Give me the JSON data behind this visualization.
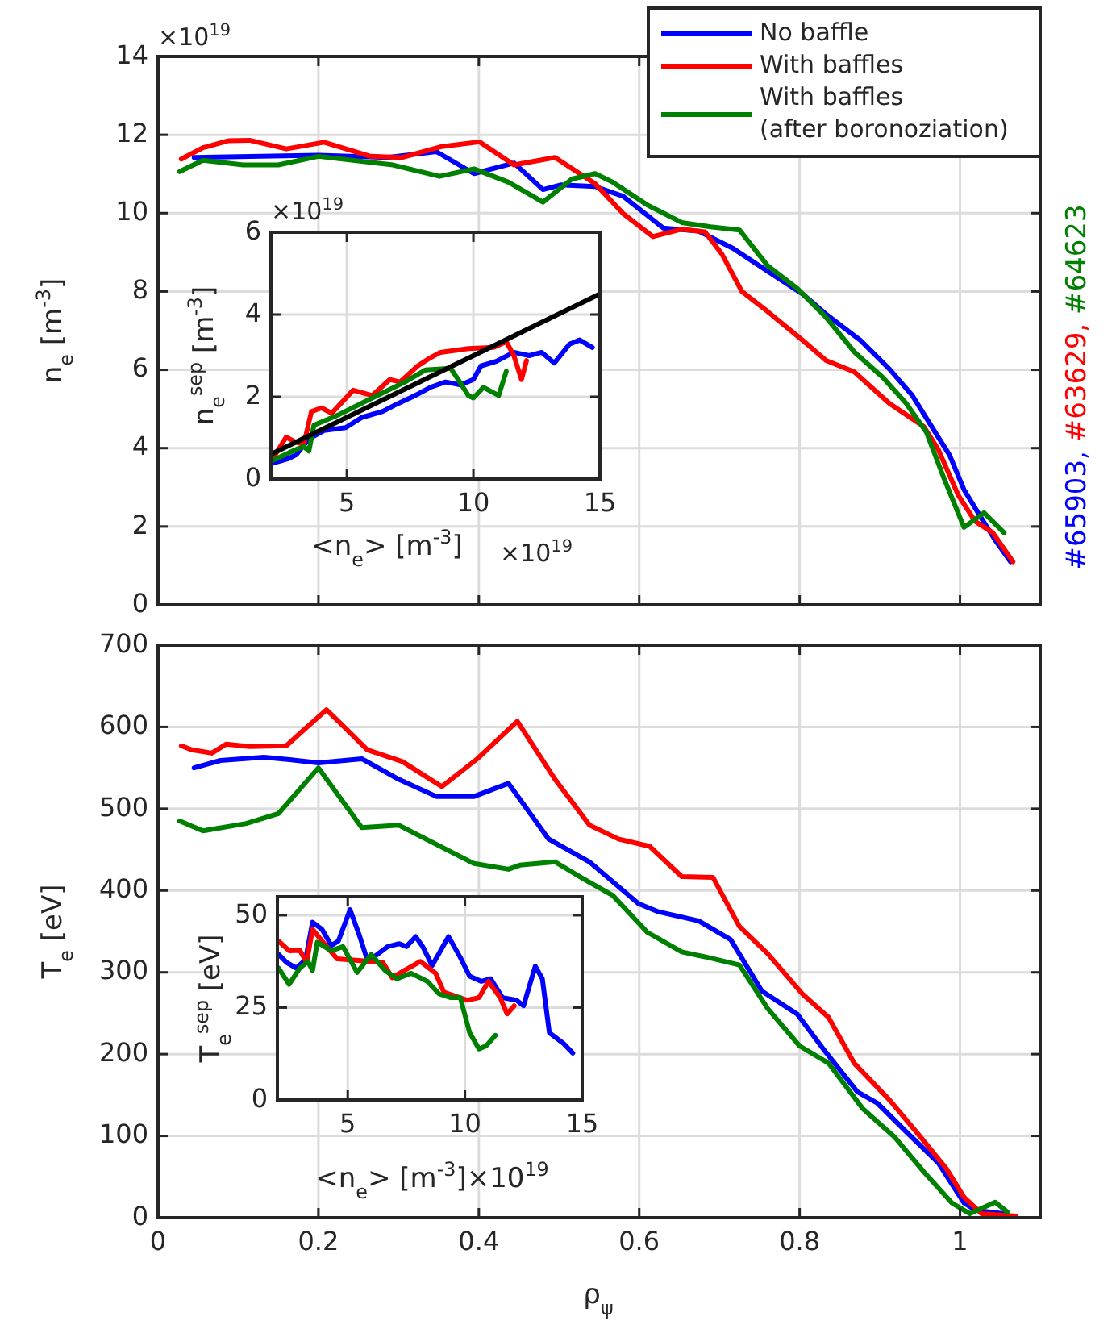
{
  "chart_data": [
    {
      "type": "line",
      "ylabel": "n$_{e}$ [m$^{-3}$]",
      "xlim": [
        0,
        1.1
      ],
      "ylim": [
        0,
        14
      ],
      "xticks": [
        0,
        0.2,
        0.4,
        0.6,
        0.8,
        1
      ],
      "yticks": [
        0,
        2,
        4,
        6,
        8,
        10,
        12,
        14
      ],
      "tick_labels": "y",
      "grid": true,
      "legend": "top right",
      "annotations": [
        "×10$^{19}$",
        "#65903,",
        "#63629,",
        "#64623"
      ],
      "series": [
        {
          "name": "No baffle",
          "color": "#0000ff",
          "x": [
            0.045,
            0.2,
            0.286,
            0.347,
            0.394,
            0.444,
            0.48,
            0.502,
            0.545,
            0.58,
            0.63,
            0.674,
            0.717,
            0.76,
            0.804,
            0.833,
            0.876,
            0.912,
            0.94,
            0.969,
            0.987,
            1.005,
            1.027,
            1.045,
            1.063
          ],
          "values": [
            11.42,
            11.48,
            11.42,
            11.57,
            11.01,
            11.28,
            10.6,
            10.72,
            10.68,
            10.43,
            9.62,
            9.54,
            9.1,
            8.52,
            7.93,
            7.42,
            6.75,
            6.02,
            5.36,
            4.41,
            3.82,
            2.94,
            2.2,
            1.62,
            1.1
          ]
        },
        {
          "name": "With baffles",
          "color": "#ff0000",
          "x": [
            0.029,
            0.056,
            0.088,
            0.114,
            0.16,
            0.207,
            0.265,
            0.304,
            0.354,
            0.401,
            0.444,
            0.495,
            0.545,
            0.58,
            0.617,
            0.653,
            0.682,
            0.703,
            0.728,
            0.76,
            0.804,
            0.833,
            0.868,
            0.912,
            0.955,
            0.973,
            0.998,
            1.019,
            1.041,
            1.066
          ],
          "values": [
            11.38,
            11.67,
            11.85,
            11.86,
            11.64,
            11.81,
            11.45,
            11.42,
            11.7,
            11.82,
            11.23,
            11.42,
            10.75,
            9.99,
            9.4,
            9.59,
            9.52,
            8.96,
            8.0,
            7.49,
            6.75,
            6.24,
            5.95,
            5.14,
            4.55,
            3.96,
            2.79,
            2.13,
            1.84,
            1.1
          ]
        },
        {
          "name": "With baffles\n(after boronoziation)",
          "color": "#008000",
          "x": [
            0.027,
            0.056,
            0.106,
            0.15,
            0.2,
            0.293,
            0.351,
            0.394,
            0.437,
            0.48,
            0.516,
            0.545,
            0.567,
            0.61,
            0.631,
            0.653,
            0.689,
            0.725,
            0.76,
            0.797,
            0.833,
            0.868,
            0.904,
            0.933,
            0.958,
            0.98,
            1.005,
            1.03,
            1.055
          ],
          "values": [
            11.06,
            11.35,
            11.23,
            11.23,
            11.45,
            11.23,
            10.94,
            11.13,
            10.79,
            10.28,
            10.87,
            11.01,
            10.79,
            10.21,
            9.99,
            9.76,
            9.65,
            9.57,
            8.66,
            8.08,
            7.34,
            6.46,
            5.8,
            5.14,
            4.41,
            3.23,
            1.98,
            2.35,
            1.84
          ]
        }
      ]
    },
    {
      "type": "line",
      "xlabel": "<n$_{e}$> [m$^{-3}$]",
      "ylabel": "n$_{e}$$^{sep}$ [m$^{-3}$]",
      "xlim": [
        2,
        15
      ],
      "ylim": [
        0,
        6
      ],
      "xticks": [
        5,
        10,
        15
      ],
      "yticks": [
        0,
        2,
        4,
        6
      ],
      "grid": true,
      "annotations": [
        "×10$^{19}$",
        "×10$^{19}$"
      ],
      "series": [
        {
          "color": "#0000ff",
          "x": [
            2.1,
            2.7,
            3.0,
            3.5,
            4.1,
            4.95,
            5.6,
            6.4,
            7.0,
            7.7,
            8.3,
            8.9,
            9.5,
            10.0,
            10.3,
            10.9,
            11.6,
            12.2,
            12.7,
            13.2,
            13.8,
            14.2,
            14.7
          ],
          "values": [
            0.39,
            0.5,
            0.59,
            0.98,
            1.18,
            1.25,
            1.5,
            1.64,
            1.83,
            2.03,
            2.23,
            2.36,
            2.29,
            2.42,
            2.75,
            2.86,
            3.08,
            3.0,
            3.08,
            2.82,
            3.28,
            3.38,
            3.2
          ]
        },
        {
          "color": "#ff0000",
          "x": [
            2.1,
            2.6,
            3.0,
            3.3,
            3.6,
            4.0,
            4.4,
            5.25,
            6.0,
            6.7,
            7.1,
            7.8,
            8.3,
            8.7,
            9.8,
            10.8,
            11.3,
            11.6,
            11.9,
            12.1
          ],
          "values": [
            0.52,
            1.02,
            0.89,
            0.85,
            1.64,
            1.73,
            1.6,
            2.16,
            2.03,
            2.42,
            2.36,
            2.75,
            2.95,
            3.08,
            3.17,
            3.2,
            3.34,
            3.0,
            2.42,
            2.88
          ]
        },
        {
          "color": "#008000",
          "x": [
            2.1,
            3.0,
            3.3,
            3.5,
            3.7,
            4.7,
            6.0,
            7.3,
            8.1,
            9.1,
            9.4,
            9.8,
            10.0,
            10.4,
            11.0,
            11.3
          ],
          "values": [
            0.46,
            0.72,
            0.79,
            0.68,
            1.31,
            1.57,
            1.97,
            2.36,
            2.65,
            2.69,
            2.42,
            2.03,
            1.97,
            2.23,
            2.03,
            2.62
          ]
        },
        {
          "type": "line",
          "color": "#000000",
          "x": [
            2,
            15
          ],
          "values": [
            0.6,
            4.5
          ]
        }
      ]
    },
    {
      "type": "line",
      "xlabel": "ρ$_{ψ}$",
      "ylabel": "T$_{e}$ [eV]",
      "xlim": [
        0,
        1.1
      ],
      "ylim": [
        0,
        700
      ],
      "xticks": [
        0,
        0.2,
        0.4,
        0.6,
        0.8,
        1
      ],
      "yticks": [
        0,
        100,
        200,
        300,
        400,
        500,
        600,
        700
      ],
      "grid": true,
      "series": [
        {
          "color": "#0000ff",
          "x": [
            0.045,
            0.078,
            0.132,
            0.164,
            0.2,
            0.254,
            0.3,
            0.347,
            0.394,
            0.437,
            0.487,
            0.538,
            0.599,
            0.624,
            0.674,
            0.714,
            0.753,
            0.797,
            0.829,
            0.872,
            0.897,
            0.933,
            0.973,
            1.005,
            1.02,
            1.055
          ],
          "values": [
            550,
            559,
            563,
            560,
            556,
            561,
            536,
            515,
            515,
            531,
            463,
            435,
            384,
            374,
            363,
            340,
            277,
            249,
            207,
            154,
            140,
            105,
            67,
            18,
            9,
            5
          ]
        },
        {
          "color": "#ff0000",
          "x": [
            0.029,
            0.042,
            0.067,
            0.085,
            0.114,
            0.16,
            0.178,
            0.21,
            0.229,
            0.261,
            0.304,
            0.354,
            0.398,
            0.448,
            0.495,
            0.538,
            0.574,
            0.613,
            0.653,
            0.692,
            0.725,
            0.76,
            0.804,
            0.836,
            0.868,
            0.912,
            0.948,
            0.983,
            1.005,
            1.027,
            1.07
          ],
          "values": [
            577,
            572,
            568,
            579,
            576,
            577,
            593,
            621,
            603,
            572,
            558,
            527,
            561,
            607,
            536,
            480,
            463,
            454,
            417,
            416,
            356,
            323,
            273,
            245,
            189,
            144,
            102,
            60,
            25,
            5,
            2
          ]
        },
        {
          "color": "#008000",
          "x": [
            0.027,
            0.056,
            0.11,
            0.15,
            0.2,
            0.254,
            0.3,
            0.394,
            0.437,
            0.451,
            0.495,
            0.531,
            0.567,
            0.61,
            0.653,
            0.682,
            0.725,
            0.76,
            0.8,
            0.836,
            0.879,
            0.919,
            0.955,
            0.99,
            1.012,
            1.044,
            1.059
          ],
          "values": [
            485,
            473,
            482,
            494,
            550,
            477,
            480,
            433,
            426,
            431,
            435,
            414,
            394,
            349,
            325,
            319,
            309,
            256,
            210,
            189,
            133,
            98,
            56,
            18,
            5,
            19,
            7
          ]
        }
      ]
    },
    {
      "type": "line",
      "xlabel": "<n$_{e}$> [m$^{-3}$]×10$^{19}$",
      "ylabel": "T$_{e}$$^{sep}$ [eV]",
      "xlim": [
        2,
        15
      ],
      "ylim": [
        0,
        55
      ],
      "xticks": [
        5,
        10,
        15
      ],
      "yticks": [
        0,
        25,
        50
      ],
      "grid": true,
      "series": [
        {
          "color": "#0000ff",
          "x": [
            2.05,
            2.4,
            2.8,
            3.2,
            3.5,
            3.9,
            4.3,
            4.6,
            5.1,
            5.5,
            5.8,
            6.1,
            6.7,
            7.2,
            7.5,
            7.9,
            8.2,
            8.6,
            9.3,
            9.8,
            10.2,
            10.7,
            11.1,
            11.6,
            12.2,
            12.5,
            13.0,
            13.3,
            13.6,
            14.2,
            14.6
          ],
          "values": [
            39.4,
            37.2,
            35.7,
            37.9,
            48.1,
            46.2,
            41.8,
            43.0,
            51.5,
            44.5,
            38.6,
            38.6,
            41.5,
            42.3,
            41.5,
            44.2,
            41.5,
            36.4,
            44.2,
            38.6,
            33.5,
            32.1,
            32.8,
            27.7,
            27.0,
            25.5,
            36.2,
            32.8,
            18.2,
            15.3,
            12.7
          ]
        },
        {
          "color": "#ff0000",
          "x": [
            2.05,
            2.5,
            2.96,
            3.25,
            3.5,
            4.0,
            4.55,
            6.0,
            6.5,
            6.9,
            7.4,
            8.1,
            8.75,
            9.1,
            10.1,
            10.6,
            11.0,
            11.5,
            11.8,
            12.1
          ],
          "values": [
            43.0,
            40.4,
            40.5,
            37.2,
            46.2,
            42.3,
            38.2,
            37.5,
            37.2,
            33.1,
            35.0,
            37.5,
            34.3,
            29.2,
            27.0,
            27.7,
            32.1,
            27.7,
            23.3,
            25.5
          ]
        },
        {
          "color": "#008000",
          "x": [
            2.05,
            2.5,
            2.96,
            3.3,
            3.5,
            3.7,
            4.3,
            4.8,
            5.4,
            6.0,
            6.6,
            7.1,
            7.7,
            8.4,
            8.9,
            9.4,
            9.8,
            10.2,
            10.6,
            10.9,
            11.3
          ],
          "values": [
            35.7,
            31.3,
            35.7,
            37.5,
            35.0,
            42.7,
            40.4,
            41.5,
            34.5,
            39.4,
            35.0,
            32.8,
            34.3,
            32.1,
            28.7,
            27.7,
            27.7,
            18.2,
            13.8,
            14.6,
            17.5
          ]
        }
      ]
    }
  ]
}
